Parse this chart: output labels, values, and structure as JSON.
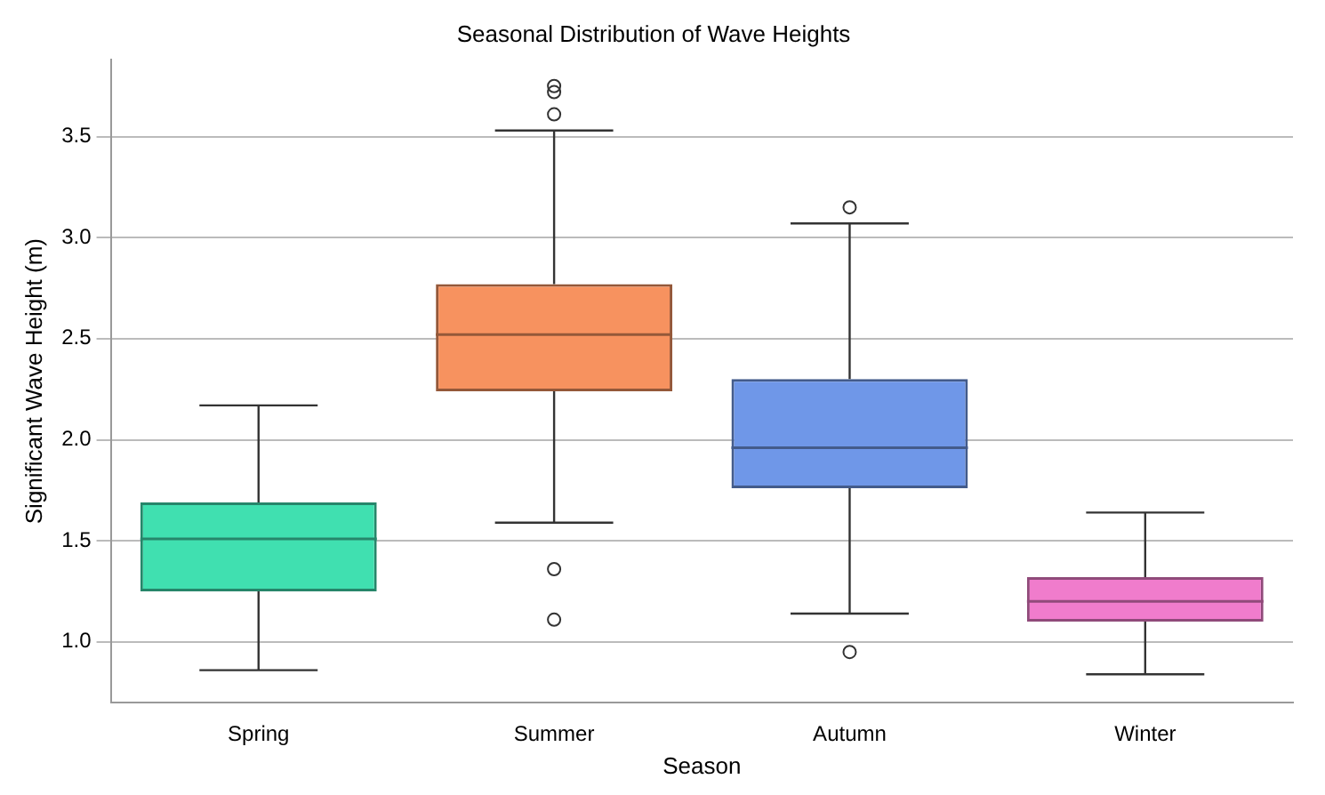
{
  "chart_data": {
    "type": "box",
    "title": "Seasonal Distribution of Wave Heights",
    "xlabel": "Season",
    "ylabel": "Significant Wave Height (m)",
    "categories": [
      "Spring",
      "Summer",
      "Autumn",
      "Winter"
    ],
    "colors": [
      "#40e0b0",
      "#f7925f",
      "#6f97e8",
      "#f07ccc"
    ],
    "boxes": [
      {
        "low": 0.86,
        "q1": 1.25,
        "median": 1.51,
        "q3": 1.69,
        "high": 2.17
      },
      {
        "low": 1.59,
        "q1": 2.24,
        "median": 2.52,
        "q3": 2.77,
        "high": 3.53,
        "outliers": [
          1.36,
          1.11,
          3.61,
          3.72,
          3.75
        ]
      },
      {
        "low": 1.14,
        "q1": 1.76,
        "median": 1.96,
        "q3": 2.3,
        "high": 3.07,
        "outliers": [
          3.15,
          0.95
        ]
      },
      {
        "low": 0.84,
        "q1": 1.1,
        "median": 1.2,
        "q3": 1.32,
        "high": 1.64
      }
    ],
    "ylim": [
      0.7,
      3.88
    ],
    "yticks": [
      {
        "value": 1,
        "label": "1.0"
      },
      1.5,
      {
        "value": 2,
        "label": "2.0"
      },
      2.5,
      {
        "value": 3,
        "label": "3.0"
      },
      3.5
    ],
    "grid": "y",
    "legend": false
  }
}
